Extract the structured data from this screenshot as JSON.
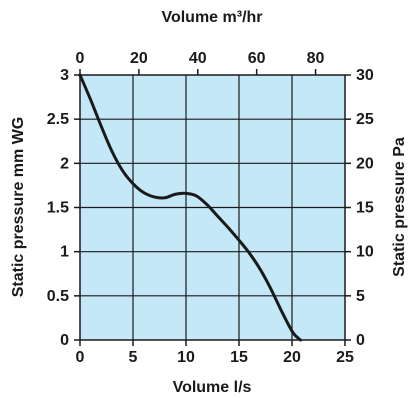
{
  "chart_data": {
    "type": "line",
    "title": "",
    "xlabel": "Volume l/s",
    "x2label": "Volume m³/hr",
    "ylabel": "Static pressure mm WG",
    "y2label": "Static pressure Pa",
    "xlim": [
      0,
      25
    ],
    "x2lim": [
      0,
      90
    ],
    "ylim": [
      0,
      3
    ],
    "y2lim": [
      0,
      30
    ],
    "x_ticks": [
      "0",
      "5",
      "10",
      "15",
      "20",
      "25"
    ],
    "x2_ticks": [
      "0",
      "20",
      "40",
      "60",
      "80"
    ],
    "y_ticks": [
      "0",
      "0.5",
      "1",
      "1.5",
      "2",
      "2.5",
      "3"
    ],
    "y2_ticks": [
      "0",
      "5",
      "10",
      "15",
      "20",
      "25",
      "30"
    ],
    "grid": true,
    "colors": {
      "plot_bg": "#c5e8f8",
      "line": "#1a1a1a",
      "grid": "#1a1a1a"
    },
    "series": [
      {
        "x": [
          0,
          1,
          2,
          3,
          4,
          5,
          6,
          7,
          8,
          9,
          10,
          11,
          12,
          13,
          14,
          15,
          16,
          17,
          18,
          19,
          20,
          20.5,
          20.8
        ],
        "y": [
          3.0,
          2.72,
          2.42,
          2.14,
          1.92,
          1.77,
          1.67,
          1.62,
          1.61,
          1.65,
          1.66,
          1.63,
          1.53,
          1.4,
          1.27,
          1.13,
          0.98,
          0.8,
          0.58,
          0.33,
          0.1,
          0.03,
          0.0
        ]
      }
    ]
  }
}
